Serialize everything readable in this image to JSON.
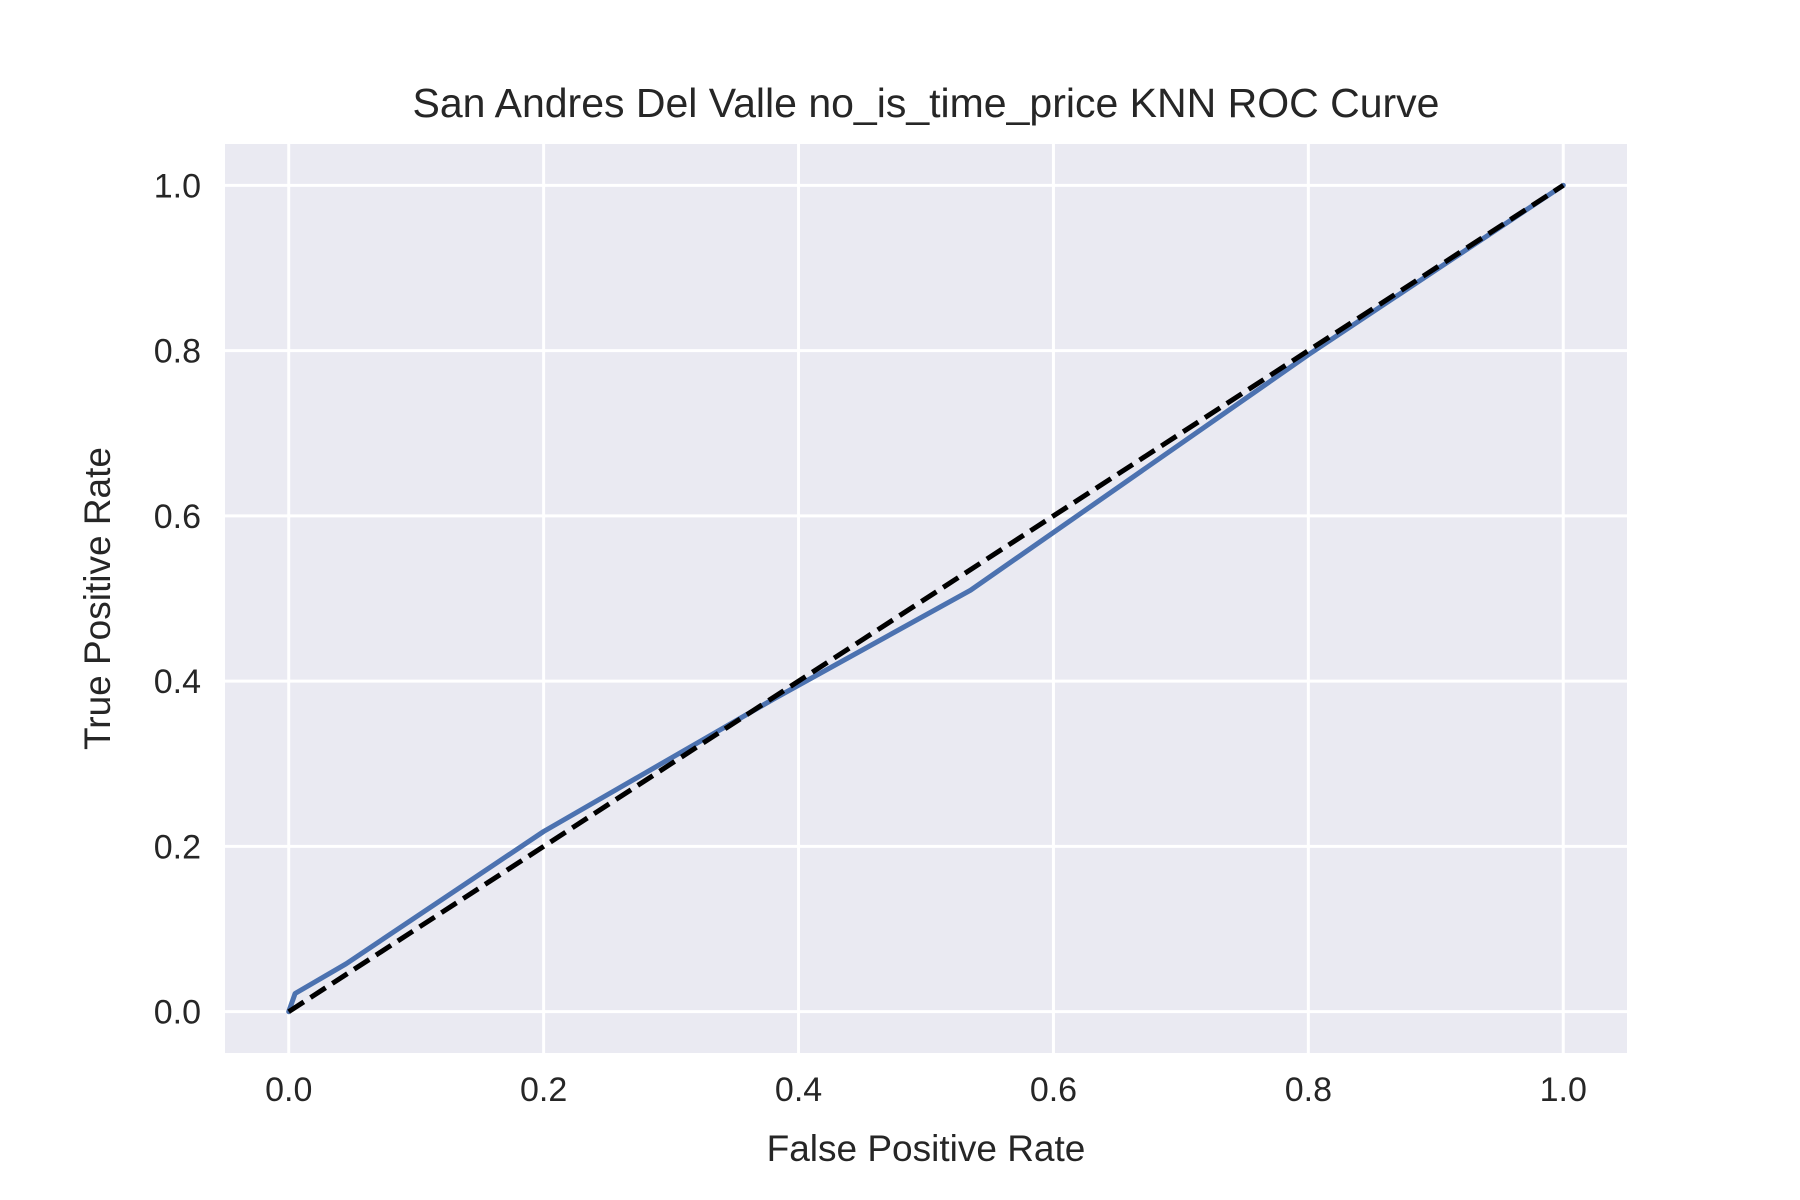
{
  "chart_data": {
    "type": "line",
    "title": "San Andres Del Valle no_is_time_price KNN ROC Curve",
    "xlabel": "False Positive Rate",
    "ylabel": "True Positive Rate",
    "xlim": [
      -0.05,
      1.05
    ],
    "ylim": [
      -0.05,
      1.05
    ],
    "xticks": [
      0.0,
      0.2,
      0.4,
      0.6,
      0.8,
      1.0
    ],
    "xtick_labels": [
      "0.0",
      "0.2",
      "0.4",
      "0.6",
      "0.8",
      "1.0"
    ],
    "yticks": [
      0.0,
      0.2,
      0.4,
      0.6,
      0.8,
      1.0
    ],
    "ytick_labels": [
      "0.0",
      "0.2",
      "0.4",
      "0.6",
      "0.8",
      "1.0"
    ],
    "grid": true,
    "legend": "none",
    "background_color": "#eaeaf2",
    "grid_color": "#ffffff",
    "series": [
      {
        "style": "solid",
        "color": "#4c72b0",
        "x": [
          0.0,
          0.005,
          0.045,
          0.2,
          0.38,
          0.535,
          0.8,
          1.0
        ],
        "y": [
          0.0,
          0.022,
          0.058,
          0.218,
          0.378,
          0.51,
          0.795,
          1.0
        ]
      },
      {
        "style": "dashed",
        "color": "#000000",
        "x": [
          0.0,
          1.0
        ],
        "y": [
          0.0,
          1.0
        ]
      }
    ]
  }
}
